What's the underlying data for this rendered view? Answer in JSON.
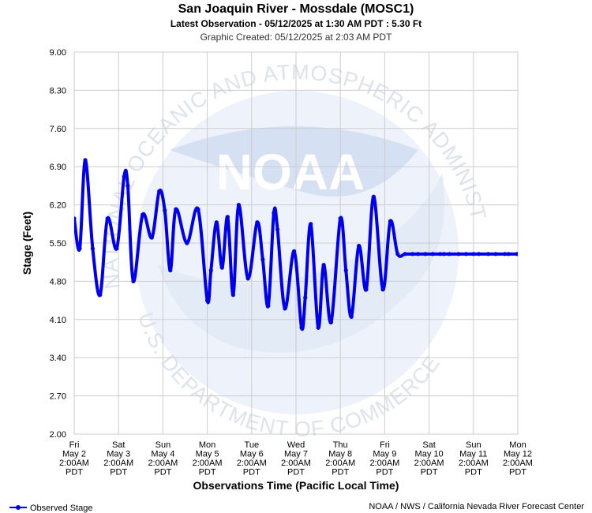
{
  "chart_data": {
    "type": "line",
    "title": "San Joaquin River - Mossdale (MOSC1)",
    "subtitle": "Latest Observation - 05/12/2025 at 1:30 AM PDT : 5.30 Ft",
    "created": "Graphic Created: 05/12/2025 at 2:03 AM PDT",
    "ylabel": "Stage (Feet)",
    "xlabel": "Observations Time (Pacific Local Time)",
    "ylim": [
      2.0,
      9.0
    ],
    "yticks": [
      "9.00",
      "8.30",
      "7.60",
      "6.90",
      "6.20",
      "5.50",
      "4.80",
      "4.10",
      "3.40",
      "2.70",
      "2.00"
    ],
    "xtick_labels": [
      [
        "Fri",
        "May 2",
        "2:00AM",
        "PDT"
      ],
      [
        "Sat",
        "May 3",
        "2:00AM",
        "PDT"
      ],
      [
        "Sun",
        "May 4",
        "2:00AM",
        "PDT"
      ],
      [
        "Mon",
        "May 5",
        "2:00AM",
        "PDT"
      ],
      [
        "Tue",
        "May 6",
        "2:00AM",
        "PDT"
      ],
      [
        "Wed",
        "May 7",
        "2:00AM",
        "PDT"
      ],
      [
        "Thu",
        "May 8",
        "2:00AM",
        "PDT"
      ],
      [
        "Fri",
        "May 9",
        "2:00AM",
        "PDT"
      ],
      [
        "Sat",
        "May 10",
        "2:00AM",
        "PDT"
      ],
      [
        "Sun",
        "May 11",
        "2:00AM",
        "PDT"
      ],
      [
        "Mon",
        "May 12",
        "2:00AM",
        "PDT"
      ]
    ],
    "grid": true,
    "series": [
      {
        "name": "Observed Stage",
        "color": "#0000ee",
        "x": [
          "2025-05-02T02:00",
          "2025-05-02T05:00",
          "2025-05-02T08:00",
          "2025-05-02T12:00",
          "2025-05-02T16:00",
          "2025-05-02T20:00",
          "2025-05-03T01:00",
          "2025-05-03T05:00",
          "2025-05-03T07:00",
          "2025-05-03T10:00",
          "2025-05-03T15:00",
          "2025-05-03T20:00",
          "2025-05-04T00:00",
          "2025-05-04T03:00",
          "2025-05-04T06:00",
          "2025-05-04T09:00",
          "2025-05-04T15:00",
          "2025-05-04T21:00",
          "2025-05-05T02:00",
          "2025-05-05T04:00",
          "2025-05-05T07:00",
          "2025-05-05T10:00",
          "2025-05-05T13:00",
          "2025-05-05T16:00",
          "2025-05-05T19:00",
          "2025-05-06T00:00",
          "2025-05-06T05:00",
          "2025-05-06T08:00",
          "2025-05-06T11:00",
          "2025-05-06T14:00",
          "2025-05-06T16:00",
          "2025-05-06T20:00",
          "2025-05-07T01:00",
          "2025-05-07T05:00",
          "2025-05-07T07:00",
          "2025-05-07T10:00",
          "2025-05-07T14:00",
          "2025-05-07T17:00",
          "2025-05-07T21:00",
          "2025-05-08T02:00",
          "2025-05-08T05:00",
          "2025-05-08T08:00",
          "2025-05-08T12:00",
          "2025-05-08T16:00",
          "2025-05-08T20:00",
          "2025-05-09T01:00",
          "2025-05-09T05:00",
          "2025-05-09T09:00",
          "2025-05-09T13:00",
          "2025-05-09T17:00",
          "2025-05-09T20:00",
          "2025-05-10T00:00",
          "2025-05-10T04:00",
          "2025-05-10T08:00",
          "2025-05-10T10:00",
          "2025-05-10T13:00",
          "2025-05-10T18:00",
          "2025-05-10T22:00",
          "2025-05-11T02:00",
          "2025-05-11T05:00",
          "2025-05-11T10:00",
          "2025-05-11T14:00",
          "2025-05-11T19:00",
          "2025-05-11T21:00",
          "2025-05-12T01:30"
        ],
        "y": [
          5.95,
          5.4,
          7.02,
          5.4,
          4.55,
          5.95,
          5.4,
          6.72,
          6.55,
          4.8,
          6.02,
          5.6,
          6.45,
          6.1,
          5.0,
          6.12,
          5.5,
          6.12,
          4.45,
          5.0,
          5.88,
          5.05,
          5.98,
          4.55,
          6.2,
          4.85,
          5.88,
          5.2,
          4.35,
          6.05,
          5.75,
          4.3,
          5.35,
          3.95,
          4.5,
          5.85,
          3.95,
          5.1,
          4.05,
          5.95,
          5.0,
          4.15,
          5.45,
          4.65,
          6.35,
          4.65,
          5.9,
          5.3,
          5.3,
          5.3,
          5.3,
          5.3,
          5.3,
          5.3,
          5.3,
          5.3,
          5.3,
          5.3,
          5.3,
          5.3,
          5.3,
          5.3,
          5.3,
          5.3,
          5.3
        ]
      }
    ]
  },
  "legend": {
    "label": "Observed Stage"
  },
  "footer": {
    "credit": "NOAA / NWS / California Nevada River Forecast Center"
  },
  "watermark": {
    "logo_text": "NOAA",
    "top_arc": "NATIONAL OCEANIC AND ATMOSPHERIC ADMINISTRATION",
    "bottom_arc": "U.S. DEPARTMENT OF COMMERCE"
  }
}
